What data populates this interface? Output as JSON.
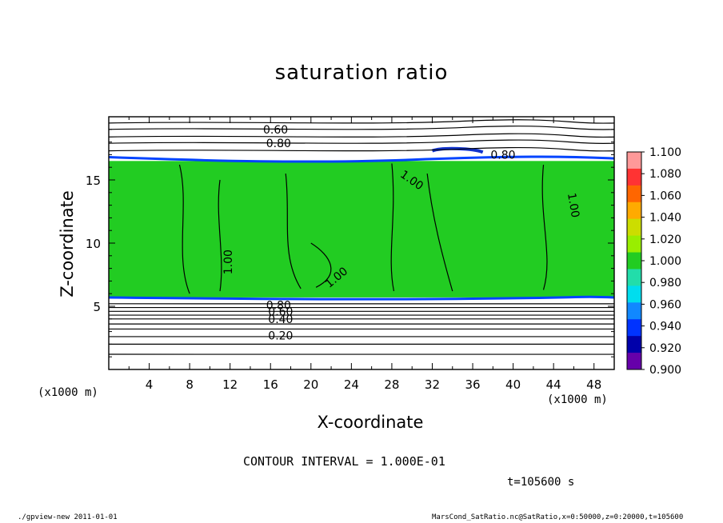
{
  "chart_data": {
    "type": "heatmap",
    "title": "saturation ratio",
    "xlabel": "X-coordinate",
    "ylabel": "Z-coordinate",
    "x_unit": "(x1000 m)",
    "y_unit": "(x1000 m)",
    "xlim": [
      0,
      50
    ],
    "ylim": [
      0,
      20
    ],
    "x_ticks": [
      4,
      8,
      12,
      16,
      20,
      24,
      28,
      32,
      36,
      40,
      44,
      48
    ],
    "y_ticks": [
      5,
      10,
      15
    ],
    "colorbar": {
      "levels": [
        "1.100",
        "1.080",
        "1.060",
        "1.040",
        "1.020",
        "1.000",
        "0.980",
        "0.960",
        "0.940",
        "0.920",
        "0.900"
      ],
      "colors": [
        "#ff9999",
        "#ff3333",
        "#ff6600",
        "#ffaa00",
        "#ccdd00",
        "#99ee00",
        "#22cc22",
        "#22ddaa",
        "#00ddee",
        "#1188ff",
        "#0033ff",
        "#0000aa",
        "#6600aa"
      ]
    },
    "contour_labels": [
      "0.60",
      "0.80",
      "0.80",
      "1.00",
      "1.00",
      "1.00",
      "1.00",
      "0.80",
      "0.60",
      "0.40",
      "0.20"
    ],
    "contour_interval": "CONTOUR INTERVAL = 1.000E-01",
    "time": "t=105600 s",
    "fill_color": "#22cc22",
    "boundary_color": "#0044ff"
  },
  "labels": {
    "xunit_left": "(x1000 m)",
    "xunit_right": "(x1000 m)",
    "footer_left": "./gpview-new   2011-01-01",
    "footer_right": "MarsCond_SatRatio.nc@SatRatio,x=0:50000,z=0:20000,t=105600"
  }
}
